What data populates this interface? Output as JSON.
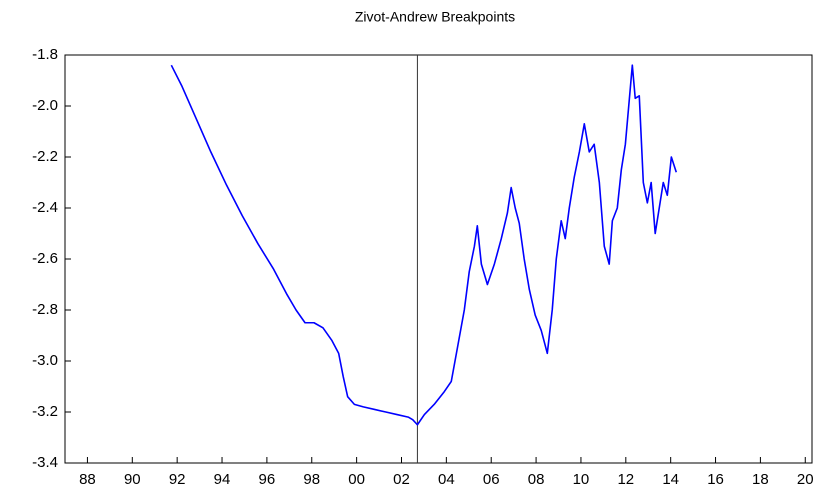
{
  "chart_data": {
    "type": "line",
    "title": "Zivot-Andrew Breakpoints",
    "x": [
      1991.74,
      1992.2,
      1992.8,
      1993.5,
      1994.2,
      1994.9,
      1995.6,
      1996.3,
      1996.9,
      1997.3,
      1997.7,
      1998.1,
      1998.5,
      1998.9,
      1999.2,
      1999.4,
      1999.6,
      1999.9,
      2000.3,
      2000.8,
      2001.3,
      2001.8,
      2002.3,
      2002.5,
      2002.71,
      2003.02,
      2003.46,
      2003.91,
      2004.22,
      2004.49,
      2004.8,
      2005.02,
      2005.25,
      2005.38,
      2005.56,
      2005.83,
      2006.14,
      2006.45,
      2006.72,
      2006.89,
      2007.07,
      2007.25,
      2007.47,
      2007.7,
      2007.96,
      2008.23,
      2008.5,
      2008.72,
      2008.9,
      2009.12,
      2009.3,
      2009.48,
      2009.7,
      2009.93,
      2010.15,
      2010.37,
      2010.59,
      2010.82,
      2011.04,
      2011.26,
      2011.4,
      2011.62,
      2011.8,
      2011.98,
      2012.15,
      2012.29,
      2012.42,
      2012.6,
      2012.78,
      2012.96,
      2013.13,
      2013.31,
      2013.49,
      2013.67,
      2013.85,
      2014.03,
      2014.25
    ],
    "series": [
      {
        "color": "#0000ff",
        "values": [
          -1.84,
          -1.92,
          -2.04,
          -2.18,
          -2.31,
          -2.43,
          -2.54,
          -2.64,
          -2.74,
          -2.8,
          -2.85,
          -2.85,
          -2.87,
          -2.92,
          -2.97,
          -3.06,
          -3.14,
          -3.17,
          -3.18,
          -3.19,
          -3.2,
          -3.21,
          -3.22,
          -3.23,
          -3.25,
          -3.21,
          -3.17,
          -3.12,
          -3.08,
          -2.95,
          -2.8,
          -2.65,
          -2.55,
          -2.47,
          -2.62,
          -2.7,
          -2.62,
          -2.52,
          -2.42,
          -2.32,
          -2.4,
          -2.46,
          -2.6,
          -2.72,
          -2.82,
          -2.88,
          -2.97,
          -2.8,
          -2.6,
          -2.45,
          -2.52,
          -2.4,
          -2.28,
          -2.18,
          -2.07,
          -2.18,
          -2.15,
          -2.3,
          -2.55,
          -2.62,
          -2.45,
          -2.4,
          -2.25,
          -2.15,
          -1.98,
          -1.84,
          -1.97,
          -1.96,
          -2.3,
          -2.38,
          -2.3,
          -2.5,
          -2.4,
          -2.3,
          -2.35,
          -2.2,
          -2.26
        ]
      }
    ],
    "breakpoint_x": 2002.71,
    "xlim": [
      1987,
      2020.3
    ],
    "xticks": [
      {
        "value": 1988,
        "label": "88"
      },
      {
        "value": 1990,
        "label": "90"
      },
      {
        "value": 1992,
        "label": "92"
      },
      {
        "value": 1994,
        "label": "94"
      },
      {
        "value": 1996,
        "label": "96"
      },
      {
        "value": 1998,
        "label": "98"
      },
      {
        "value": 2000,
        "label": "00"
      },
      {
        "value": 2002,
        "label": "02"
      },
      {
        "value": 2004,
        "label": "04"
      },
      {
        "value": 2006,
        "label": "06"
      },
      {
        "value": 2008,
        "label": "08"
      },
      {
        "value": 2010,
        "label": "10"
      },
      {
        "value": 2012,
        "label": "12"
      },
      {
        "value": 2014,
        "label": "14"
      },
      {
        "value": 2016,
        "label": "16"
      },
      {
        "value": 2018,
        "label": "18"
      },
      {
        "value": 2020,
        "label": "20"
      }
    ],
    "ylim": [
      -3.4,
      -1.8
    ],
    "yticks": [
      -1.8,
      {
        "value": -2,
        "label": "-2.0"
      },
      -2.2,
      -2.4,
      -2.6,
      -2.8,
      {
        "value": -3,
        "label": "-3.0"
      },
      -3.2,
      -3.4
    ]
  }
}
